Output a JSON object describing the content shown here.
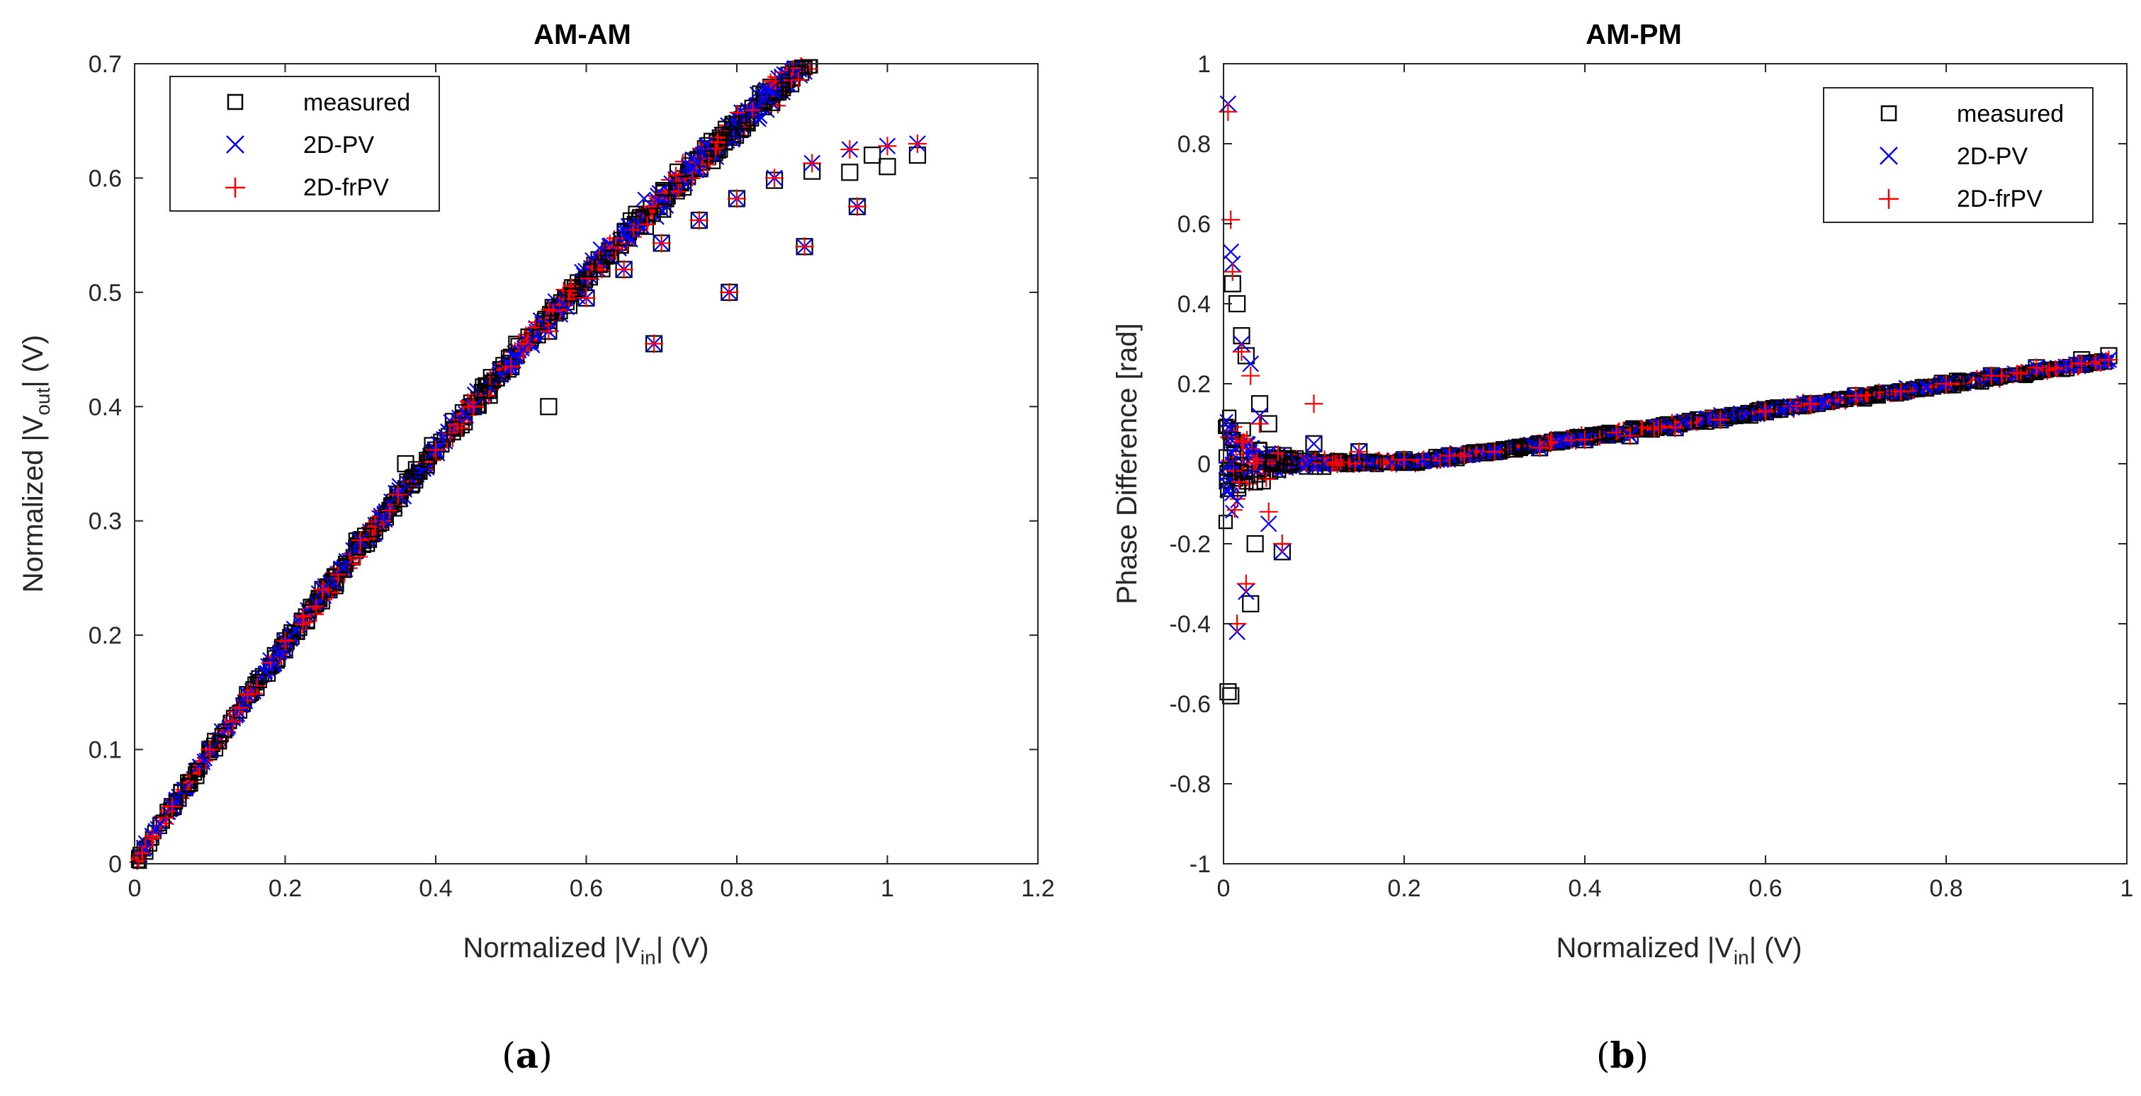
{
  "chart_data": [
    {
      "type": "scatter",
      "title": "AM-AM",
      "xlabel": {
        "prefix": "Normalized |V",
        "sub": "in",
        "suffix": "| (V)"
      },
      "ylabel": {
        "prefix": "Normalized |V",
        "sub": "out",
        "suffix": "| (V)"
      },
      "xlim": [
        0,
        1.2
      ],
      "ylim": [
        0,
        0.7
      ],
      "xticks": [
        "0",
        "0.2",
        "0.4",
        "0.6",
        "0.8",
        "1",
        "1.2"
      ],
      "yticks": [
        "0",
        "0.1",
        "0.2",
        "0.3",
        "0.4",
        "0.5",
        "0.6",
        "0.7"
      ],
      "legend_position": "top-left",
      "series": [
        {
          "name": "measured",
          "marker": "square",
          "color": "#000000",
          "x": [
            0.0,
            0.05,
            0.1,
            0.15,
            0.2,
            0.25,
            0.3,
            0.35,
            0.4,
            0.45,
            0.5,
            0.55,
            0.6,
            0.65,
            0.7,
            0.75,
            0.8,
            0.85,
            0.9,
            0.95,
            1.0,
            1.04,
            0.69,
            0.79,
            0.89,
            0.96,
            0.36,
            0.55,
            0.98
          ],
          "y": [
            0.0,
            0.05,
            0.1,
            0.148,
            0.195,
            0.24,
            0.283,
            0.323,
            0.362,
            0.4,
            0.435,
            0.466,
            0.495,
            0.52,
            0.543,
            0.563,
            0.582,
            0.598,
            0.606,
            0.605,
            0.61,
            0.62,
            0.455,
            0.5,
            0.54,
            0.575,
            0.35,
            0.4,
            0.62
          ]
        },
        {
          "name": "2D-PV",
          "marker": "x",
          "color": "#0000ff",
          "x": [
            0.0,
            0.05,
            0.1,
            0.15,
            0.2,
            0.25,
            0.3,
            0.35,
            0.4,
            0.45,
            0.5,
            0.55,
            0.6,
            0.65,
            0.7,
            0.75,
            0.8,
            0.85,
            0.9,
            0.95,
            1.0,
            1.04,
            0.69,
            0.79,
            0.89,
            0.96
          ],
          "y": [
            0.0,
            0.05,
            0.1,
            0.148,
            0.195,
            0.24,
            0.283,
            0.323,
            0.362,
            0.4,
            0.435,
            0.466,
            0.495,
            0.52,
            0.543,
            0.563,
            0.582,
            0.6,
            0.613,
            0.625,
            0.628,
            0.63,
            0.455,
            0.5,
            0.54,
            0.575
          ]
        },
        {
          "name": "2D-frPV",
          "marker": "plus",
          "color": "#ff0000",
          "x": [
            0.0,
            0.05,
            0.1,
            0.15,
            0.2,
            0.25,
            0.3,
            0.35,
            0.4,
            0.45,
            0.5,
            0.55,
            0.6,
            0.65,
            0.7,
            0.75,
            0.8,
            0.85,
            0.9,
            0.95,
            1.0,
            1.04,
            0.69,
            0.79,
            0.89,
            0.96
          ],
          "y": [
            0.0,
            0.05,
            0.1,
            0.148,
            0.195,
            0.24,
            0.283,
            0.323,
            0.362,
            0.4,
            0.435,
            0.466,
            0.495,
            0.52,
            0.543,
            0.563,
            0.582,
            0.6,
            0.613,
            0.625,
            0.628,
            0.63,
            0.455,
            0.5,
            0.54,
            0.575
          ]
        }
      ]
    },
    {
      "type": "scatter",
      "title": "AM-PM",
      "xlabel": {
        "prefix": "Normalized |V",
        "sub": "in",
        "suffix": "| (V)"
      },
      "ylabel": {
        "prefix": "Phase Difference [rad]",
        "sub": "",
        "suffix": ""
      },
      "xlim": [
        0,
        1
      ],
      "ylim": [
        -1,
        1
      ],
      "xticks": [
        "0",
        "0.2",
        "0.4",
        "0.6",
        "0.8",
        "1"
      ],
      "yticks": [
        "-1",
        "-0.8",
        "-0.6",
        "-0.4",
        "-0.2",
        "0",
        "0.2",
        "0.4",
        "0.6",
        "0.8",
        "1"
      ],
      "legend_position": "top-right",
      "series": [
        {
          "name": "measured",
          "marker": "square",
          "color": "#000000",
          "x": [
            0.005,
            0.008,
            0.01,
            0.015,
            0.02,
            0.025,
            0.03,
            0.035,
            0.04,
            0.05,
            0.065,
            0.1,
            0.15,
            0.2,
            0.25,
            0.3,
            0.35,
            0.4,
            0.45,
            0.5,
            0.55,
            0.6,
            0.65,
            0.7,
            0.75,
            0.8,
            0.85,
            0.9,
            0.95,
            0.98
          ],
          "y": [
            -0.57,
            -0.58,
            0.45,
            0.4,
            0.32,
            0.27,
            -0.35,
            -0.2,
            0.15,
            0.1,
            -0.22,
            0.05,
            0.03,
            0.01,
            0.02,
            0.03,
            0.04,
            0.06,
            0.07,
            0.09,
            0.11,
            0.13,
            0.15,
            0.17,
            0.18,
            0.2,
            0.22,
            0.24,
            0.26,
            0.27
          ]
        },
        {
          "name": "2D-PV",
          "marker": "x",
          "color": "#0000ff",
          "x": [
            0.005,
            0.008,
            0.01,
            0.015,
            0.02,
            0.025,
            0.03,
            0.04,
            0.05,
            0.065,
            0.1,
            0.15,
            0.2,
            0.25,
            0.3,
            0.35,
            0.4,
            0.45,
            0.5,
            0.55,
            0.6,
            0.65,
            0.7,
            0.75,
            0.8,
            0.85,
            0.9,
            0.95,
            0.98
          ],
          "y": [
            0.9,
            0.53,
            0.5,
            -0.42,
            0.3,
            -0.32,
            0.25,
            0.12,
            -0.15,
            -0.22,
            0.05,
            0.03,
            0.01,
            0.02,
            0.03,
            0.04,
            0.06,
            0.07,
            0.09,
            0.11,
            0.13,
            0.15,
            0.17,
            0.18,
            0.2,
            0.22,
            0.24,
            0.25,
            0.26
          ]
        },
        {
          "name": "2D-frPV",
          "marker": "plus",
          "color": "#ff0000",
          "x": [
            0.005,
            0.008,
            0.01,
            0.015,
            0.02,
            0.025,
            0.03,
            0.04,
            0.05,
            0.065,
            0.1,
            0.15,
            0.2,
            0.25,
            0.3,
            0.35,
            0.4,
            0.45,
            0.5,
            0.55,
            0.6,
            0.65,
            0.7,
            0.75,
            0.8,
            0.85,
            0.9,
            0.95,
            0.98
          ],
          "y": [
            0.88,
            0.61,
            0.48,
            -0.4,
            0.28,
            -0.3,
            0.22,
            0.1,
            -0.12,
            -0.2,
            0.15,
            0.03,
            0.01,
            0.02,
            0.03,
            0.04,
            0.06,
            0.07,
            0.09,
            0.11,
            0.13,
            0.15,
            0.17,
            0.18,
            0.2,
            0.22,
            0.24,
            0.25,
            0.26
          ]
        }
      ]
    }
  ],
  "panel_labels": [
    "(a)",
    "(b)"
  ]
}
